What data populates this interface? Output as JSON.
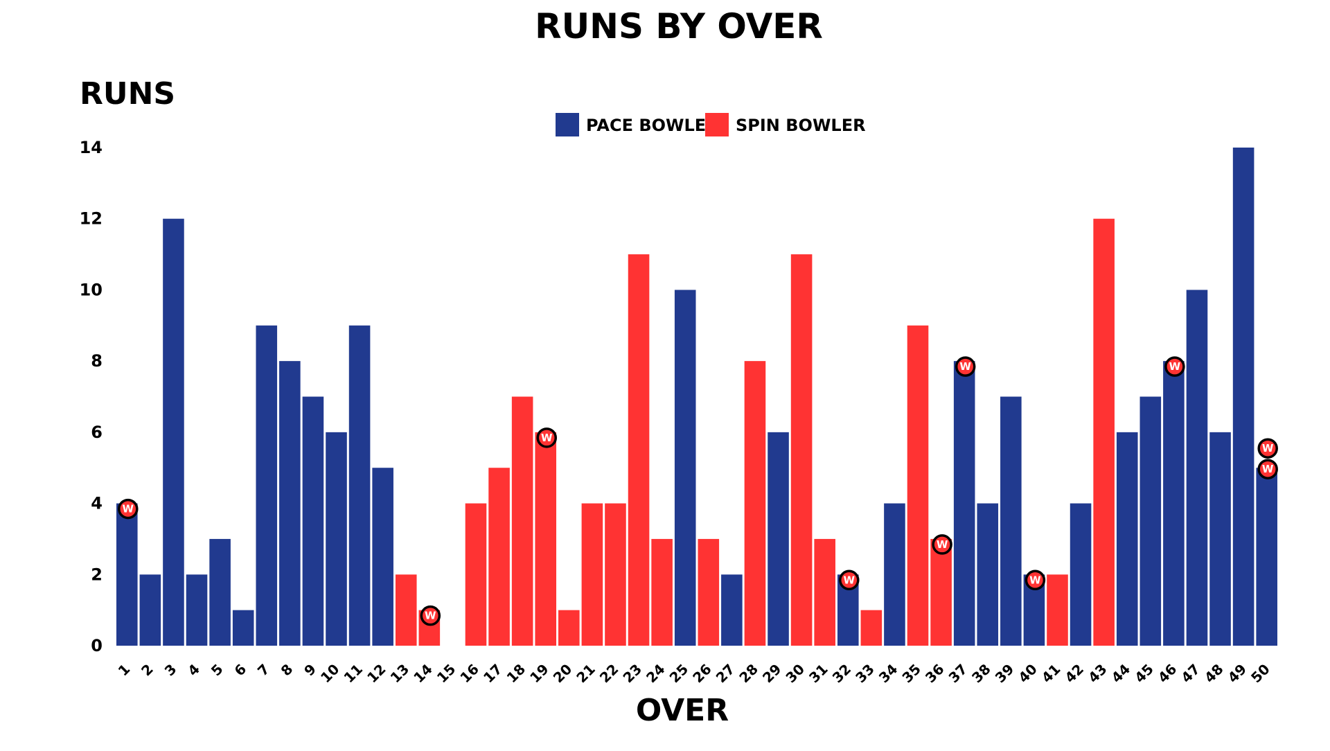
{
  "chart_data": {
    "type": "bar",
    "title": "RUNS BY OVER",
    "xlabel": "OVER",
    "ylabel": "RUNS",
    "ylim": [
      0,
      14
    ],
    "yticks": [
      0,
      2,
      4,
      6,
      8,
      10,
      12,
      14
    ],
    "grid": false,
    "legend_position": "top-center",
    "wicket_marker_label": "W",
    "series": [
      {
        "name": "PACE BOWLER",
        "color": "#213A8F"
      },
      {
        "name": "SPIN BOWLER",
        "color": "#FF3333"
      }
    ],
    "overs": [
      {
        "over": "1",
        "runs": 4,
        "bowler": "PACE BOWLER",
        "wickets": 1
      },
      {
        "over": "2",
        "runs": 2,
        "bowler": "PACE BOWLER",
        "wickets": 0
      },
      {
        "over": "3",
        "runs": 12,
        "bowler": "PACE BOWLER",
        "wickets": 0
      },
      {
        "over": "4",
        "runs": 2,
        "bowler": "PACE BOWLER",
        "wickets": 0
      },
      {
        "over": "5",
        "runs": 3,
        "bowler": "PACE BOWLER",
        "wickets": 0
      },
      {
        "over": "6",
        "runs": 1,
        "bowler": "PACE BOWLER",
        "wickets": 0
      },
      {
        "over": "7",
        "runs": 9,
        "bowler": "PACE BOWLER",
        "wickets": 0
      },
      {
        "over": "8",
        "runs": 8,
        "bowler": "PACE BOWLER",
        "wickets": 0
      },
      {
        "over": "9",
        "runs": 7,
        "bowler": "PACE BOWLER",
        "wickets": 0
      },
      {
        "over": "10",
        "runs": 6,
        "bowler": "PACE BOWLER",
        "wickets": 0
      },
      {
        "over": "11",
        "runs": 9,
        "bowler": "PACE BOWLER",
        "wickets": 0
      },
      {
        "over": "12",
        "runs": 5,
        "bowler": "PACE BOWLER",
        "wickets": 0
      },
      {
        "over": "13",
        "runs": 2,
        "bowler": "SPIN BOWLER",
        "wickets": 0
      },
      {
        "over": "14",
        "runs": 1,
        "bowler": "SPIN BOWLER",
        "wickets": 1
      },
      {
        "over": "15",
        "runs": 0,
        "bowler": "SPIN BOWLER",
        "wickets": 0
      },
      {
        "over": "16",
        "runs": 4,
        "bowler": "SPIN BOWLER",
        "wickets": 0
      },
      {
        "over": "17",
        "runs": 5,
        "bowler": "SPIN BOWLER",
        "wickets": 0
      },
      {
        "over": "18",
        "runs": 7,
        "bowler": "SPIN BOWLER",
        "wickets": 0
      },
      {
        "over": "19",
        "runs": 6,
        "bowler": "SPIN BOWLER",
        "wickets": 1
      },
      {
        "over": "20",
        "runs": 1,
        "bowler": "SPIN BOWLER",
        "wickets": 0
      },
      {
        "over": "21",
        "runs": 4,
        "bowler": "SPIN BOWLER",
        "wickets": 0
      },
      {
        "over": "22",
        "runs": 4,
        "bowler": "SPIN BOWLER",
        "wickets": 0
      },
      {
        "over": "23",
        "runs": 11,
        "bowler": "SPIN BOWLER",
        "wickets": 0
      },
      {
        "over": "24",
        "runs": 3,
        "bowler": "SPIN BOWLER",
        "wickets": 0
      },
      {
        "over": "25",
        "runs": 10,
        "bowler": "PACE BOWLER",
        "wickets": 0
      },
      {
        "over": "26",
        "runs": 3,
        "bowler": "SPIN BOWLER",
        "wickets": 0
      },
      {
        "over": "27",
        "runs": 2,
        "bowler": "PACE BOWLER",
        "wickets": 0
      },
      {
        "over": "28",
        "runs": 8,
        "bowler": "SPIN BOWLER",
        "wickets": 0
      },
      {
        "over": "29",
        "runs": 6,
        "bowler": "PACE BOWLER",
        "wickets": 0
      },
      {
        "over": "30",
        "runs": 11,
        "bowler": "SPIN BOWLER",
        "wickets": 0
      },
      {
        "over": "31",
        "runs": 3,
        "bowler": "SPIN BOWLER",
        "wickets": 0
      },
      {
        "over": "32",
        "runs": 2,
        "bowler": "PACE BOWLER",
        "wickets": 1
      },
      {
        "over": "33",
        "runs": 1,
        "bowler": "SPIN BOWLER",
        "wickets": 0
      },
      {
        "over": "34",
        "runs": 4,
        "bowler": "PACE BOWLER",
        "wickets": 0
      },
      {
        "over": "35",
        "runs": 9,
        "bowler": "SPIN BOWLER",
        "wickets": 0
      },
      {
        "over": "36",
        "runs": 3,
        "bowler": "SPIN BOWLER",
        "wickets": 1
      },
      {
        "over": "37",
        "runs": 8,
        "bowler": "PACE BOWLER",
        "wickets": 1
      },
      {
        "over": "38",
        "runs": 4,
        "bowler": "PACE BOWLER",
        "wickets": 0
      },
      {
        "over": "39",
        "runs": 7,
        "bowler": "PACE BOWLER",
        "wickets": 0
      },
      {
        "over": "40",
        "runs": 2,
        "bowler": "PACE BOWLER",
        "wickets": 1
      },
      {
        "over": "41",
        "runs": 2,
        "bowler": "SPIN BOWLER",
        "wickets": 0
      },
      {
        "over": "42",
        "runs": 4,
        "bowler": "PACE BOWLER",
        "wickets": 0
      },
      {
        "over": "43",
        "runs": 12,
        "bowler": "SPIN BOWLER",
        "wickets": 0
      },
      {
        "over": "44",
        "runs": 6,
        "bowler": "PACE BOWLER",
        "wickets": 0
      },
      {
        "over": "45",
        "runs": 7,
        "bowler": "PACE BOWLER",
        "wickets": 0
      },
      {
        "over": "46",
        "runs": 8,
        "bowler": "PACE BOWLER",
        "wickets": 1
      },
      {
        "over": "47",
        "runs": 10,
        "bowler": "PACE BOWLER",
        "wickets": 0
      },
      {
        "over": "48",
        "runs": 6,
        "bowler": "PACE BOWLER",
        "wickets": 0
      },
      {
        "over": "49",
        "runs": 14,
        "bowler": "PACE BOWLER",
        "wickets": 0
      },
      {
        "over": "50",
        "runs": 5,
        "bowler": "PACE BOWLER",
        "wickets": 2
      }
    ]
  }
}
